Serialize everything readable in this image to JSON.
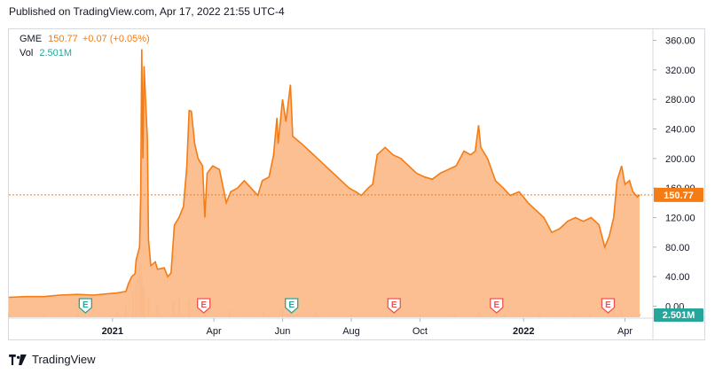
{
  "header": {
    "published": "Published on TradingView.com, Apr 17, 2022 21:55 UTC-4"
  },
  "legend": {
    "symbol": "GME",
    "price": "150.77",
    "change": "+0.07 (+0.05%)",
    "vol_label": "Vol",
    "vol_value": "2.501M"
  },
  "footer": {
    "brand": "TradingView",
    "logo_icon": "tradingview-logo-icon"
  },
  "colors": {
    "price_line": "#f57c14",
    "area_fill": "#fbb886",
    "volume_bar": "#f3c9a6",
    "volume_tag": "#26a69a",
    "earnings_green": "#26a69a",
    "earnings_red": "#ef5350",
    "axis_text": "#131722"
  },
  "chart_data": {
    "type": "area",
    "title": "",
    "xlabel": "",
    "ylabel": "",
    "ylim": [
      -15,
      375
    ],
    "grid": false,
    "y_ticks": [
      "0.00",
      "40.00",
      "80.00",
      "120.00",
      "160.00",
      "200.00",
      "240.00",
      "280.00",
      "320.00",
      "360.00"
    ],
    "y_tick_values": [
      0,
      40,
      80,
      120,
      160,
      200,
      240,
      280,
      320,
      360
    ],
    "x_ticks": [
      "2021",
      "Apr",
      "Jun",
      "Aug",
      "Oct",
      "2022",
      "Apr"
    ],
    "x_tick_dates": [
      "2021-01-01",
      "2021-04-01",
      "2021-06-01",
      "2021-08-01",
      "2021-10-01",
      "2022-01-01",
      "2022-04-01"
    ],
    "last_price_label": "150.77",
    "last_price": 150.77,
    "volume_label": "2.501M",
    "x_start": "2020-10-01",
    "x_end": "2022-04-25",
    "series": [
      {
        "name": "GME",
        "points": [
          [
            "2020-10-01",
            12
          ],
          [
            "2020-10-15",
            13
          ],
          [
            "2020-11-01",
            13
          ],
          [
            "2020-11-15",
            15
          ],
          [
            "2020-12-01",
            16
          ],
          [
            "2020-12-15",
            15
          ],
          [
            "2021-01-05",
            18
          ],
          [
            "2021-01-13",
            20
          ],
          [
            "2021-01-15",
            30
          ],
          [
            "2021-01-18",
            40
          ],
          [
            "2021-01-21",
            44
          ],
          [
            "2021-01-22",
            63
          ],
          [
            "2021-01-25",
            80
          ],
          [
            "2021-01-26",
            150
          ],
          [
            "2021-01-27",
            348
          ],
          [
            "2021-01-28",
            200
          ],
          [
            "2021-01-29",
            325
          ],
          [
            "2021-02-01",
            225
          ],
          [
            "2021-02-02",
            90
          ],
          [
            "2021-02-04",
            55
          ],
          [
            "2021-02-08",
            60
          ],
          [
            "2021-02-10",
            50
          ],
          [
            "2021-02-16",
            52
          ],
          [
            "2021-02-19",
            40
          ],
          [
            "2021-02-22",
            45
          ],
          [
            "2021-02-24",
            90
          ],
          [
            "2021-02-25",
            110
          ],
          [
            "2021-03-01",
            120
          ],
          [
            "2021-03-05",
            135
          ],
          [
            "2021-03-08",
            190
          ],
          [
            "2021-03-10",
            265
          ],
          [
            "2021-03-12",
            264
          ],
          [
            "2021-03-15",
            220
          ],
          [
            "2021-03-18",
            200
          ],
          [
            "2021-03-22",
            190
          ],
          [
            "2021-03-24",
            120
          ],
          [
            "2021-03-26",
            180
          ],
          [
            "2021-03-31",
            190
          ],
          [
            "2021-04-06",
            185
          ],
          [
            "2021-04-12",
            140
          ],
          [
            "2021-04-16",
            155
          ],
          [
            "2021-04-22",
            160
          ],
          [
            "2021-04-28",
            170
          ],
          [
            "2021-05-04",
            160
          ],
          [
            "2021-05-10",
            150
          ],
          [
            "2021-05-14",
            170
          ],
          [
            "2021-05-20",
            175
          ],
          [
            "2021-05-24",
            205
          ],
          [
            "2021-05-27",
            255
          ],
          [
            "2021-05-28",
            220
          ],
          [
            "2021-06-01",
            280
          ],
          [
            "2021-06-04",
            250
          ],
          [
            "2021-06-08",
            300
          ],
          [
            "2021-06-10",
            230
          ],
          [
            "2021-06-14",
            225
          ],
          [
            "2021-06-18",
            220
          ],
          [
            "2021-06-25",
            210
          ],
          [
            "2021-07-02",
            200
          ],
          [
            "2021-07-09",
            190
          ],
          [
            "2021-07-16",
            180
          ],
          [
            "2021-07-23",
            170
          ],
          [
            "2021-07-30",
            160
          ],
          [
            "2021-08-05",
            155
          ],
          [
            "2021-08-10",
            150
          ],
          [
            "2021-08-16",
            160
          ],
          [
            "2021-08-20",
            165
          ],
          [
            "2021-08-24",
            205
          ],
          [
            "2021-08-31",
            215
          ],
          [
            "2021-09-07",
            205
          ],
          [
            "2021-09-14",
            200
          ],
          [
            "2021-09-21",
            190
          ],
          [
            "2021-09-28",
            180
          ],
          [
            "2021-10-05",
            175
          ],
          [
            "2021-10-12",
            172
          ],
          [
            "2021-10-19",
            180
          ],
          [
            "2021-10-26",
            185
          ],
          [
            "2021-11-02",
            190
          ],
          [
            "2021-11-09",
            210
          ],
          [
            "2021-11-15",
            205
          ],
          [
            "2021-11-19",
            210
          ],
          [
            "2021-11-22",
            245
          ],
          [
            "2021-11-24",
            215
          ],
          [
            "2021-11-30",
            200
          ],
          [
            "2021-12-07",
            170
          ],
          [
            "2021-12-14",
            160
          ],
          [
            "2021-12-20",
            150
          ],
          [
            "2021-12-28",
            155
          ],
          [
            "2022-01-05",
            140
          ],
          [
            "2022-01-12",
            130
          ],
          [
            "2022-01-19",
            120
          ],
          [
            "2022-01-26",
            100
          ],
          [
            "2022-02-02",
            105
          ],
          [
            "2022-02-09",
            115
          ],
          [
            "2022-02-16",
            120
          ],
          [
            "2022-02-23",
            115
          ],
          [
            "2022-03-02",
            120
          ],
          [
            "2022-03-09",
            110
          ],
          [
            "2022-03-14",
            80
          ],
          [
            "2022-03-18",
            95
          ],
          [
            "2022-03-22",
            120
          ],
          [
            "2022-03-25",
            170
          ],
          [
            "2022-03-29",
            190
          ],
          [
            "2022-04-01",
            165
          ],
          [
            "2022-04-05",
            170
          ],
          [
            "2022-04-08",
            155
          ],
          [
            "2022-04-12",
            148
          ],
          [
            "2022-04-14",
            150.77
          ]
        ]
      }
    ],
    "volume_profile": {
      "dates": [
        "2020-10-01",
        "2020-11-01",
        "2020-12-01",
        "2021-01-05",
        "2021-01-13",
        "2021-01-19",
        "2021-01-22",
        "2021-01-25",
        "2021-01-26",
        "2021-01-27",
        "2021-01-28",
        "2021-01-29",
        "2021-02-02",
        "2021-02-10",
        "2021-02-24",
        "2021-03-01",
        "2021-03-10",
        "2021-03-24",
        "2021-04-15",
        "2021-05-15",
        "2021-06-01",
        "2021-06-08",
        "2021-07-01",
        "2021-08-01",
        "2021-09-01",
        "2021-10-01",
        "2021-11-01",
        "2021-11-22",
        "2021-12-15",
        "2022-01-15",
        "2022-02-15",
        "2022-03-01",
        "2022-03-22",
        "2022-03-29",
        "2022-04-14"
      ],
      "relative": [
        0.05,
        0.05,
        0.06,
        0.08,
        0.2,
        0.45,
        0.6,
        0.9,
        1.0,
        0.8,
        0.55,
        0.5,
        0.35,
        0.2,
        0.3,
        0.35,
        0.3,
        0.2,
        0.12,
        0.1,
        0.15,
        0.18,
        0.08,
        0.06,
        0.06,
        0.05,
        0.05,
        0.1,
        0.06,
        0.06,
        0.05,
        0.06,
        0.1,
        0.12,
        0.05
      ]
    },
    "earnings_markers": [
      {
        "date": "2020-12-08",
        "kind": "green"
      },
      {
        "date": "2021-03-23",
        "kind": "red"
      },
      {
        "date": "2021-06-09",
        "kind": "green"
      },
      {
        "date": "2021-09-08",
        "kind": "red"
      },
      {
        "date": "2021-12-08",
        "kind": "red"
      },
      {
        "date": "2022-03-17",
        "kind": "red"
      }
    ],
    "earnings_label": "E"
  }
}
